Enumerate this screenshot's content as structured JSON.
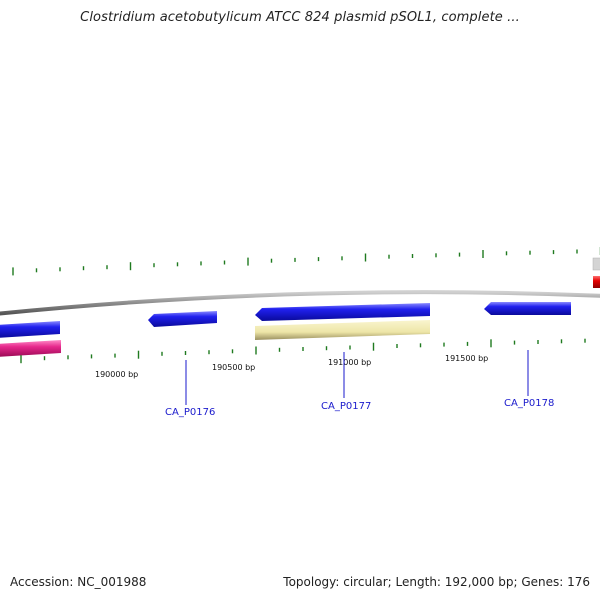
{
  "title": "Clostridium acetobutylicum ATCC 824 plasmid pSOL1, complete ...",
  "footer": {
    "accession": "Accession: NC_001988",
    "summary": "Topology: circular; Length: 192,000 bp; Genes: 176"
  },
  "colors": {
    "backbone": "#8c8c8c",
    "tick": "#1f7a1f",
    "gene_forward": "#1a1ae6",
    "gene_reverse": "#1a1ae6",
    "feature_yellow": "#eee6a8",
    "feature_pink": "#e6288c",
    "feature_red": "#e60000",
    "feature_gray": "#cfcfcf",
    "gene_label": "#1a1acc"
  },
  "position_labels": [
    "190000 bp",
    "190500 bp",
    "191000 bp",
    "191500 bp"
  ],
  "genes": [
    {
      "name": "CA_P0176",
      "strand": "reverse"
    },
    {
      "name": "CA_P0177",
      "strand": "reverse"
    },
    {
      "name": "CA_P0178",
      "strand": "reverse"
    }
  ]
}
